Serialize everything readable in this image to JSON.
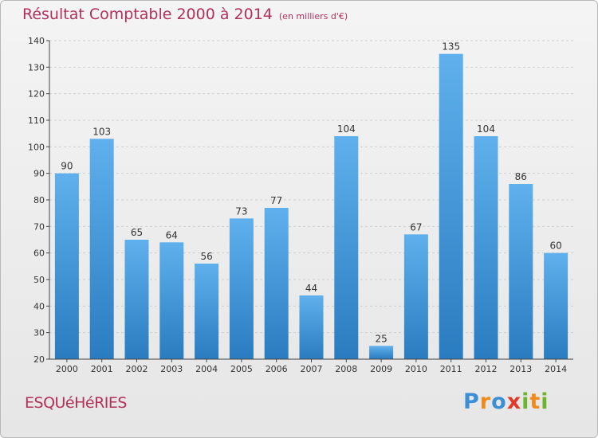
{
  "header": {
    "title": "Résultat Comptable 2000 à 2014",
    "subtitle": "(en milliers d'€)"
  },
  "footer": {
    "city": "ESQUéHéRIES"
  },
  "logo": {
    "letters": [
      "P",
      "r",
      "o",
      "x",
      "i",
      "t",
      "i"
    ],
    "colors": [
      "#3a8fd6",
      "#f08a1c",
      "#3a8fd6",
      "#e23a2a",
      "#6cb42c",
      "#f08a1c",
      "#6cb42c"
    ]
  },
  "colors": {
    "bar_top": "#5fb0ec",
    "bar_bottom": "#2a7cc0",
    "grid": "#cfcfcf",
    "axis": "#444444",
    "text": "#333333"
  },
  "chart_data": {
    "type": "bar",
    "title": "Résultat Comptable 2000 à 2014",
    "ylabel": "",
    "xlabel": "",
    "categories": [
      "2000",
      "2001",
      "2002",
      "2003",
      "2004",
      "2005",
      "2006",
      "2007",
      "2008",
      "2009",
      "2010",
      "2011",
      "2012",
      "2013",
      "2014"
    ],
    "values": [
      90,
      103,
      65,
      64,
      56,
      73,
      77,
      44,
      104,
      25,
      67,
      135,
      104,
      86,
      60
    ],
    "ylim": [
      20,
      140
    ],
    "yticks": [
      20,
      30,
      40,
      50,
      60,
      70,
      80,
      90,
      100,
      110,
      120,
      130,
      140
    ],
    "grid": true
  }
}
